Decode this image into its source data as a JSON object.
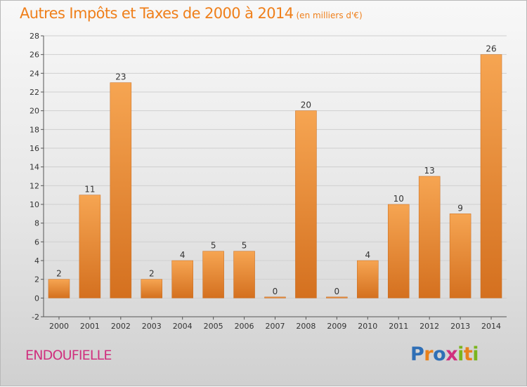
{
  "header": {
    "title": "Autres Impôts et Taxes de 2000 à 2014",
    "subtitle": "(en milliers d'€)"
  },
  "footer": {
    "commune": "ENDOUFIELLE",
    "logo_text": "Proxiti",
    "logo_letters": [
      {
        "char": "P",
        "color": "#2f6fb6"
      },
      {
        "char": "r",
        "color": "#e8811b"
      },
      {
        "char": "o",
        "color": "#2f6fb6"
      },
      {
        "char": "x",
        "color": "#d0307e"
      },
      {
        "char": "i",
        "color": "#7ab51d"
      },
      {
        "char": "t",
        "color": "#e8811b"
      },
      {
        "char": "i",
        "color": "#7ab51d"
      }
    ]
  },
  "colors": {
    "title": "#ef7f1a",
    "commune": "#d0307e",
    "bar_light": "#f6a552",
    "bar_dark": "#d4701f",
    "grid": "#cfcfcf",
    "axis": "#555555",
    "text": "#333333"
  },
  "chart_data": {
    "type": "bar",
    "categories": [
      "2000",
      "2001",
      "2002",
      "2003",
      "2004",
      "2005",
      "2006",
      "2007",
      "2008",
      "2009",
      "2010",
      "2011",
      "2012",
      "2013",
      "2014"
    ],
    "values": [
      2,
      11,
      23,
      2,
      4,
      5,
      5,
      0,
      20,
      0,
      4,
      10,
      13,
      9,
      26
    ],
    "data_labels": [
      "2",
      "11",
      "23",
      "2",
      "4",
      "5",
      "5",
      "0",
      "20",
      "0",
      "4",
      "10",
      "13",
      "9",
      "26"
    ],
    "y_ticks": [
      "-2",
      "0",
      "2",
      "4",
      "6",
      "8",
      "10",
      "12",
      "14",
      "16",
      "18",
      "20",
      "22",
      "24",
      "26",
      "28"
    ],
    "ylim": [
      -2,
      28
    ],
    "grid": true,
    "legend": "none"
  }
}
